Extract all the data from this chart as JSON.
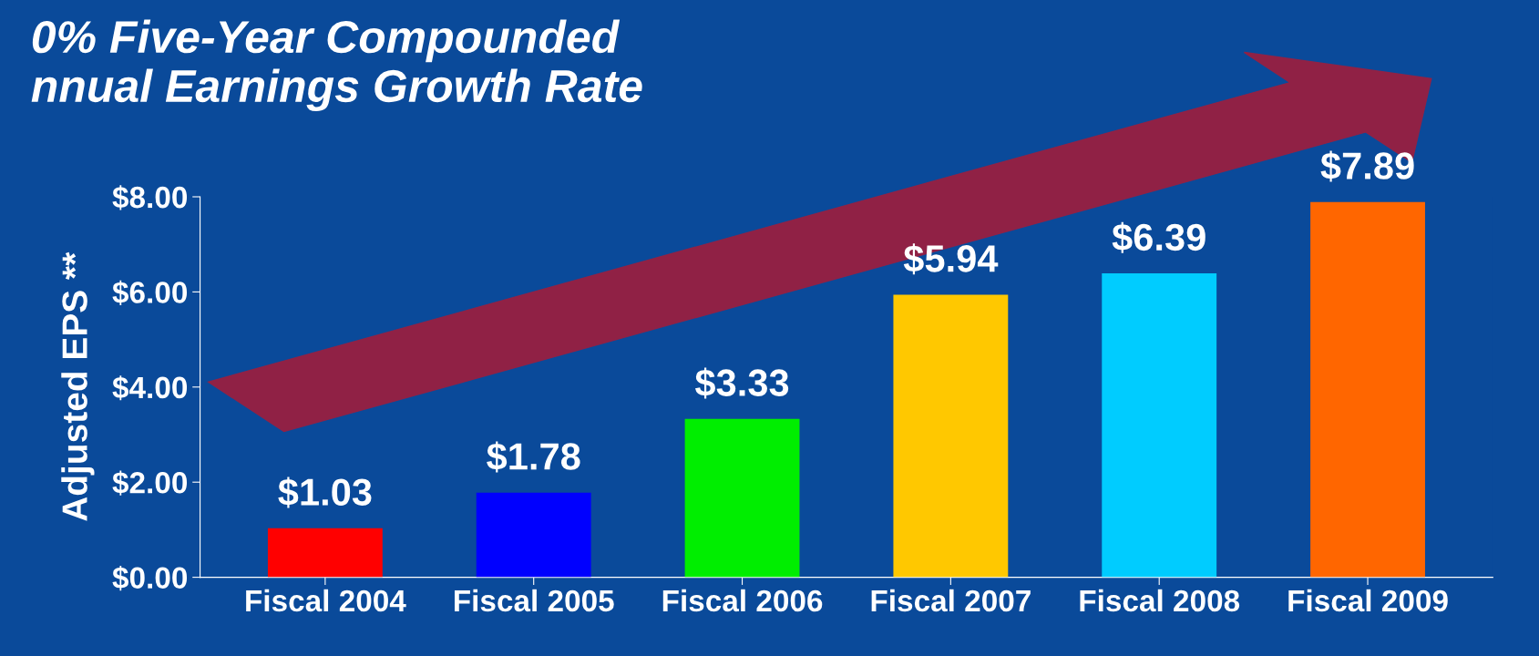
{
  "chart_data": {
    "type": "bar",
    "title": "0% Five-Year Compounded\nnnual Earnings Growth Rate",
    "ylabel": "Adjusted EPS **",
    "categories": [
      "Fiscal 2004",
      "Fiscal 2005",
      "Fiscal 2006",
      "Fiscal 2007",
      "Fiscal 2008",
      "Fiscal 2009"
    ],
    "values": [
      1.03,
      1.78,
      3.33,
      5.94,
      6.39,
      7.89
    ],
    "colors": [
      "#ff0000",
      "#0000ff",
      "#00ee00",
      "#ffc800",
      "#00ccff",
      "#ff6600"
    ],
    "value_labels": [
      "$1.03",
      "$1.78",
      "$3.33",
      "$5.94",
      "$6.39",
      "$7.89"
    ],
    "ylim": [
      0,
      8
    ],
    "yticks": [
      {
        "value": 0,
        "label": "$0.00"
      },
      {
        "value": 2,
        "label": "$2.00"
      },
      {
        "value": 4,
        "label": "$4.00"
      },
      {
        "value": 6,
        "label": "$6.00"
      },
      {
        "value": 8,
        "label": "$8.00"
      }
    ],
    "grid": false
  }
}
